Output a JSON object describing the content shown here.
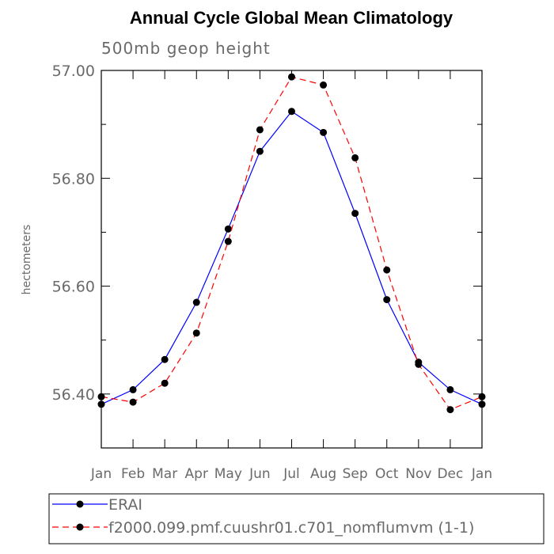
{
  "chart_data": {
    "type": "line",
    "title": "Annual Cycle Global Mean Climatology",
    "subtitle": "500mb geop height",
    "xlabel": "",
    "ylabel": "hectometers",
    "categories": [
      "Jan",
      "Feb",
      "Mar",
      "Apr",
      "May",
      "Jun",
      "Jul",
      "Aug",
      "Sep",
      "Oct",
      "Nov",
      "Dec",
      "Jan"
    ],
    "ylim": [
      56.3,
      57.0
    ],
    "yticks_major": [
      56.4,
      56.6,
      56.8,
      57.0
    ],
    "ytick_labels": [
      "56.40",
      "56.60",
      "56.80",
      "57.00"
    ],
    "yticks_minor": [
      56.3,
      56.5,
      56.7,
      56.9
    ],
    "grid": false,
    "legend_position": "bottom",
    "series": [
      {
        "name": "ERAI",
        "color": "#0000ff",
        "dash": "solid",
        "marker": "filled-circle",
        "values": [
          56.381,
          56.408,
          56.464,
          56.57,
          56.706,
          56.85,
          56.924,
          56.885,
          56.735,
          56.575,
          56.459,
          56.408,
          56.381
        ]
      },
      {
        "name": "f2000.099.pmf.cuushr01.c701_nomflumvm (1-1)",
        "color": "#ff0000",
        "dash": "dashed",
        "marker": "filled-circle",
        "values": [
          56.395,
          56.385,
          56.42,
          56.513,
          56.683,
          56.89,
          56.988,
          56.973,
          56.838,
          56.63,
          56.455,
          56.371,
          56.395
        ]
      }
    ]
  }
}
